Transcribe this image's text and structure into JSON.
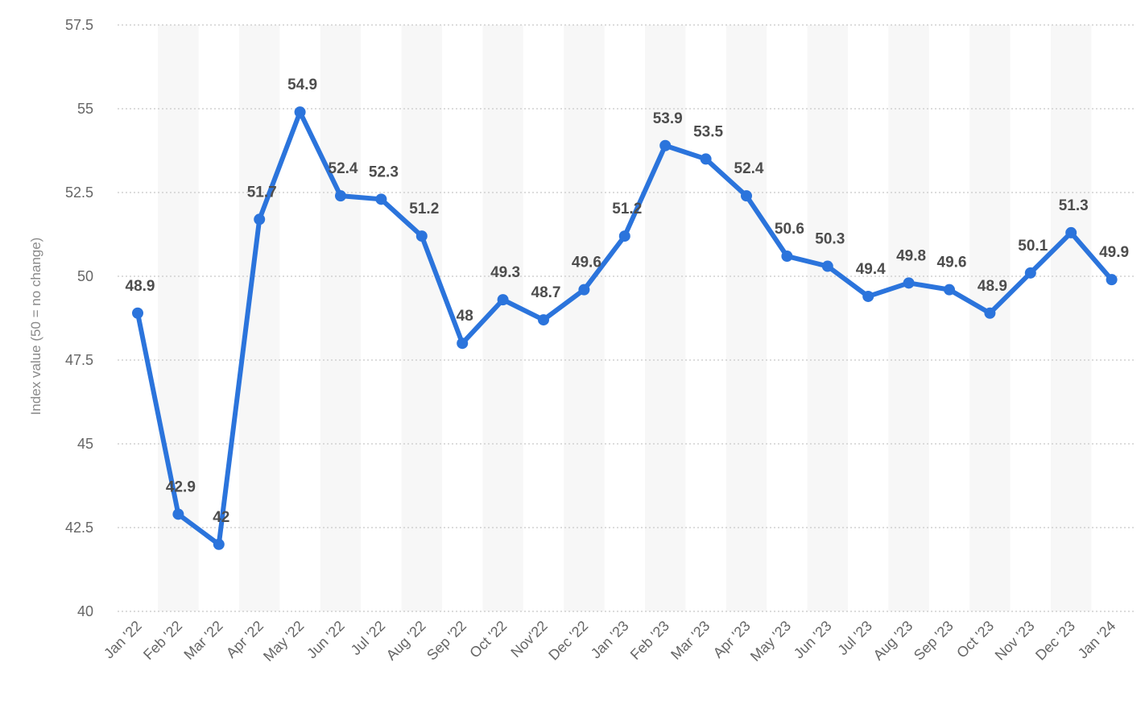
{
  "chart_data": {
    "type": "line",
    "title": "",
    "xlabel": "",
    "ylabel": "Index value (50 = no change)",
    "ylim": [
      40,
      57.5
    ],
    "yticks": [
      "40",
      "42.5",
      "45",
      "47.5",
      "50",
      "52.5",
      "55",
      "57.5"
    ],
    "grid": true,
    "alternating_bands": true,
    "colors": {
      "line": "#2b74dc",
      "point": "#2b74dc",
      "band": "#f7f7f7",
      "label": "#4d4d4d"
    },
    "categories": [
      "Jan '22",
      "Feb '22",
      "Mar '22",
      "Apr '22",
      "May '22",
      "Jun '22",
      "Jul '22",
      "Aug '22",
      "Sep '22",
      "Oct '22",
      "Nov'22",
      "Dec '22",
      "Jan '23",
      "Feb '23",
      "Mar '23",
      "Apr '23",
      "May '23",
      "Jun '23",
      "Jul '23",
      "Aug '23",
      "Sep '23",
      "Oct '23",
      "Nov '23",
      "Dec '23",
      "Jan '24"
    ],
    "series": [
      {
        "values": [
          48.9,
          42.9,
          42,
          51.7,
          54.9,
          52.4,
          52.3,
          51.2,
          48,
          49.3,
          48.7,
          49.6,
          51.2,
          53.9,
          53.5,
          52.4,
          50.6,
          50.3,
          49.4,
          49.8,
          49.6,
          48.9,
          50.1,
          51.3,
          49.9
        ],
        "labels": [
          "48.9",
          "42.9",
          "42",
          "51.7",
          "54.9",
          "52.4",
          "52.3",
          "51.2",
          "48",
          "49.3",
          "48.7",
          "49.6",
          "51.2",
          "53.9",
          "53.5",
          "52.4",
          "50.6",
          "50.3",
          "49.4",
          "49.8",
          "49.6",
          "48.9",
          "50.1",
          "51.3",
          "49.9"
        ]
      }
    ]
  }
}
